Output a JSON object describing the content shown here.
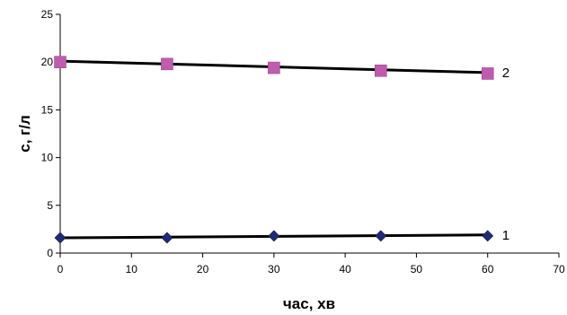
{
  "chart_data": {
    "type": "scatter",
    "title": "",
    "xlabel": "час, хв",
    "ylabel": "с, г/л",
    "xlim": [
      0,
      70
    ],
    "ylim": [
      0,
      25
    ],
    "x_ticks": [
      0,
      10,
      20,
      30,
      40,
      50,
      60,
      70
    ],
    "y_ticks": [
      0,
      5,
      10,
      15,
      20,
      25
    ],
    "grid": false,
    "legend": "none",
    "series": [
      {
        "name": "1",
        "marker": "diamond",
        "color": "#1f2a7a",
        "x": [
          0,
          15,
          30,
          45,
          60
        ],
        "y": [
          1.6,
          1.6,
          1.8,
          1.8,
          1.8
        ],
        "trendline": [
          1.6,
          1.9
        ]
      },
      {
        "name": "2",
        "marker": "square",
        "color": "#c05cad",
        "x": [
          0,
          15,
          30,
          45,
          60
        ],
        "y": [
          20.0,
          19.8,
          19.4,
          19.1,
          18.8
        ],
        "trendline": [
          20.1,
          18.9
        ]
      }
    ]
  }
}
